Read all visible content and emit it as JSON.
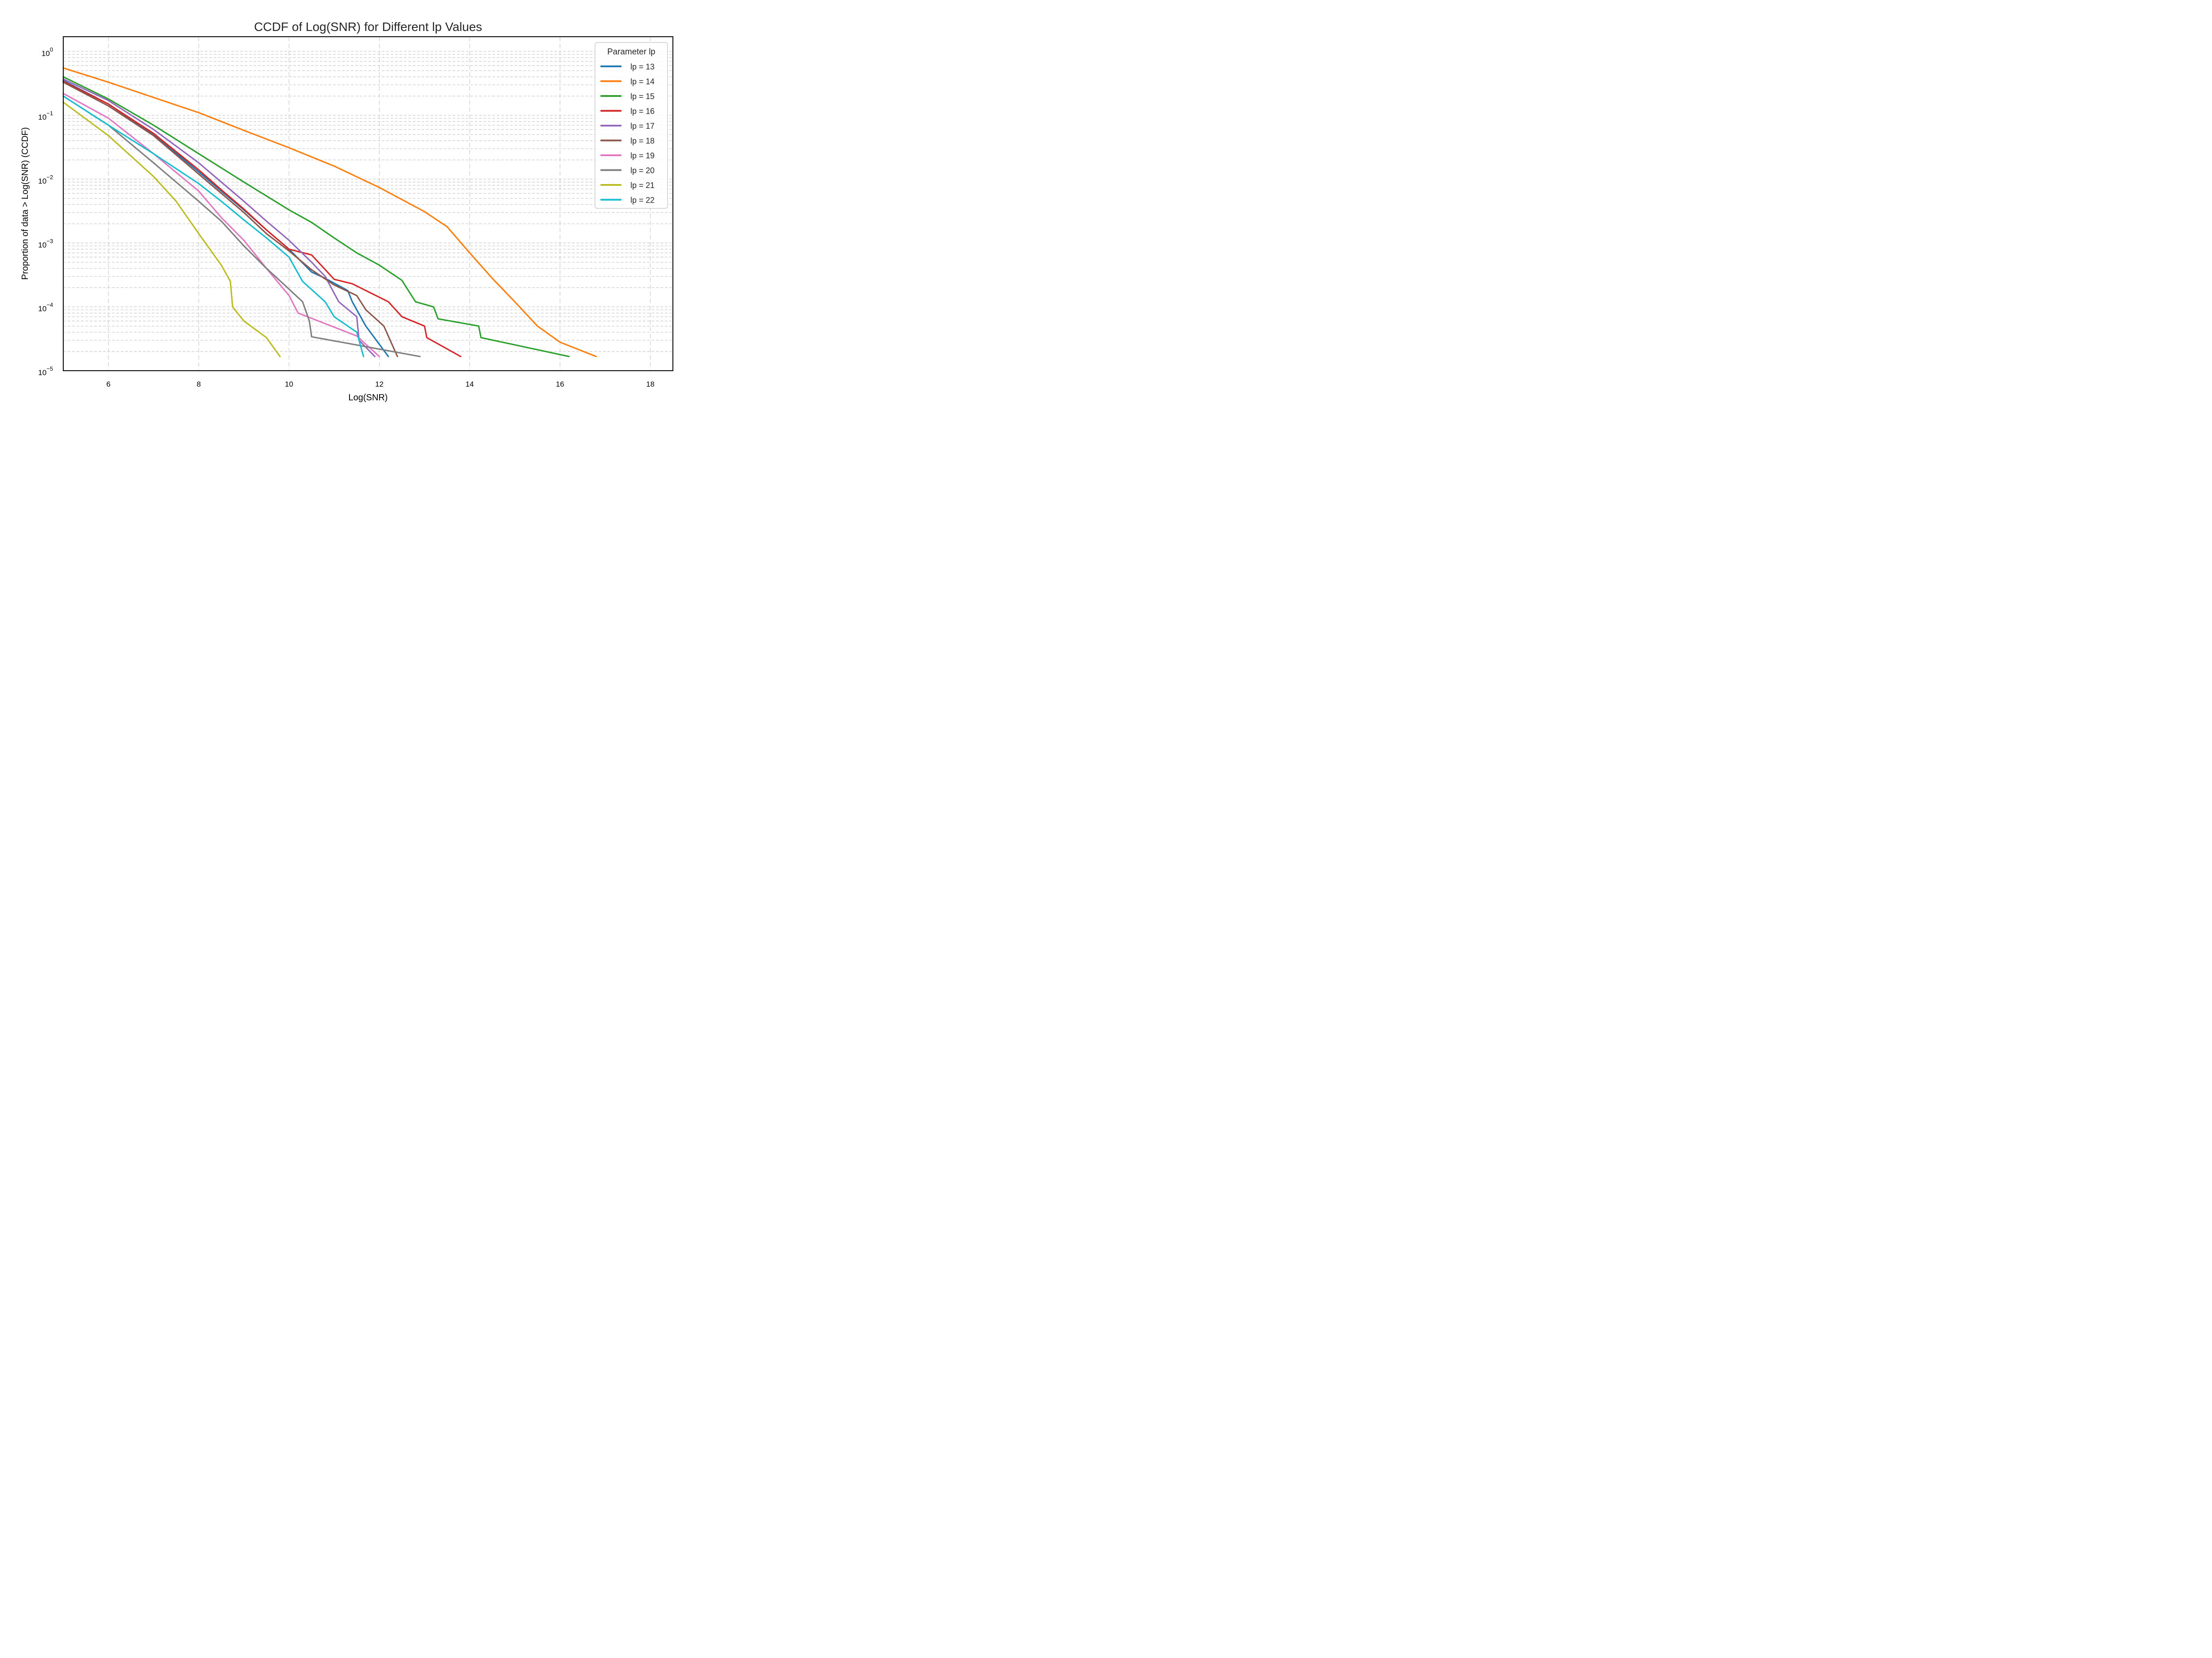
{
  "chart_data": {
    "type": "line",
    "title": "CCDF of Log(SNR) for Different lp Values",
    "xlabel": "Log(SNR)",
    "ylabel": "Proportion of data > Log(SNR) (CCDF)",
    "xlim": [
      5.0,
      18.5
    ],
    "ylim": [
      1e-05,
      1.7
    ],
    "yscale": "log",
    "grid": true,
    "xticks": [
      6,
      8,
      10,
      12,
      14,
      16,
      18
    ],
    "xtick_labels": [
      "6",
      "8",
      "10",
      "12",
      "14",
      "16",
      "18"
    ],
    "yticks": [
      1e-05,
      0.0001,
      0.001,
      0.01,
      0.1,
      1
    ],
    "ytick_labels": [
      {
        "base": "10",
        "exp": "−5"
      },
      {
        "base": "10",
        "exp": "−4"
      },
      {
        "base": "10",
        "exp": "−3"
      },
      {
        "base": "10",
        "exp": "−2"
      },
      {
        "base": "10",
        "exp": "−1"
      },
      {
        "base": "10",
        "exp": "0"
      }
    ],
    "legend": {
      "title": "Parameter lp",
      "position": "top-right"
    },
    "series": [
      {
        "name": "lp = 13",
        "color": "#1f77b4",
        "x": [
          5.0,
          6.0,
          7.0,
          8.0,
          8.5,
          9.0,
          9.5,
          10.0,
          10.5,
          10.8,
          11.3,
          11.4,
          11.7,
          12.2
        ],
        "y": [
          0.35,
          0.15,
          0.05,
          0.013,
          0.0065,
          0.0033,
          0.0016,
          0.0008,
          0.00035,
          0.00028,
          0.00018,
          0.00012,
          5e-05,
          1.67e-05
        ]
      },
      {
        "name": "lp = 14",
        "color": "#ff7f0e",
        "x": [
          5.0,
          6.0,
          7.0,
          8.0,
          9.0,
          10.0,
          11.0,
          12.0,
          13.0,
          13.5,
          14.0,
          14.5,
          15.0,
          15.5,
          16.0,
          16.8
        ],
        "y": [
          0.55,
          0.33,
          0.19,
          0.11,
          0.058,
          0.031,
          0.016,
          0.0074,
          0.0031,
          0.0018,
          0.0007,
          0.00028,
          0.00012,
          5e-05,
          2.8e-05,
          1.67e-05
        ]
      },
      {
        "name": "lp = 15",
        "color": "#2ca02c",
        "x": [
          5.0,
          6.0,
          7.0,
          8.0,
          9.0,
          10.0,
          10.5,
          11.0,
          11.5,
          12.0,
          12.5,
          12.8,
          13.2,
          13.3,
          14.2,
          14.25,
          16.2
        ],
        "y": [
          0.4,
          0.18,
          0.07,
          0.025,
          0.009,
          0.0033,
          0.0021,
          0.0012,
          0.0007,
          0.00045,
          0.00026,
          0.00012,
          0.0001,
          6.5e-05,
          5e-05,
          3.3e-05,
          1.67e-05
        ]
      },
      {
        "name": "lp = 16",
        "color": "#d62728",
        "x": [
          5.0,
          6.0,
          7.0,
          8.0,
          8.5,
          9.0,
          9.5,
          10.0,
          10.5,
          11.0,
          11.4,
          12.2,
          12.5,
          13.0,
          13.05,
          13.8
        ],
        "y": [
          0.34,
          0.15,
          0.052,
          0.014,
          0.0068,
          0.0034,
          0.0016,
          0.0008,
          0.00065,
          0.00027,
          0.00023,
          0.00012,
          7e-05,
          5e-05,
          3.3e-05,
          1.67e-05
        ]
      },
      {
        "name": "lp = 17",
        "color": "#9467bd",
        "x": [
          5.0,
          6.0,
          7.0,
          8.0,
          8.5,
          9.0,
          9.5,
          10.0,
          10.5,
          10.8,
          11.1,
          11.5,
          11.55,
          11.9
        ],
        "y": [
          0.37,
          0.17,
          0.06,
          0.018,
          0.009,
          0.0045,
          0.0022,
          0.0011,
          0.0005,
          0.0003,
          0.00012,
          7e-05,
          3e-05,
          1.67e-05
        ]
      },
      {
        "name": "lp = 18",
        "color": "#8c564b",
        "x": [
          5.0,
          6.0,
          7.0,
          8.0,
          8.5,
          9.0,
          9.5,
          10.0,
          10.5,
          11.0,
          11.5,
          11.7,
          12.1,
          12.4
        ],
        "y": [
          0.33,
          0.14,
          0.048,
          0.012,
          0.006,
          0.003,
          0.0014,
          0.00075,
          0.00038,
          0.00022,
          0.00015,
          9e-05,
          5e-05,
          1.67e-05
        ]
      },
      {
        "name": "lp = 19",
        "color": "#e377c2",
        "x": [
          5.0,
          6.0,
          7.0,
          8.0,
          8.5,
          9.0,
          9.5,
          10.0,
          10.2,
          11.5,
          12.0
        ],
        "y": [
          0.22,
          0.09,
          0.025,
          0.0065,
          0.0025,
          0.0011,
          0.0004,
          0.00015,
          8e-05,
          3.5e-05,
          1.67e-05
        ]
      },
      {
        "name": "lp = 20",
        "color": "#7f7f7f",
        "x": [
          5.0,
          6.0,
          7.0,
          8.0,
          8.5,
          9.0,
          9.5,
          9.9,
          10.3,
          10.45,
          10.5,
          12.9
        ],
        "y": [
          0.2,
          0.07,
          0.018,
          0.0045,
          0.0022,
          0.0009,
          0.0004,
          0.00022,
          0.00012,
          6e-05,
          3.4e-05,
          1.67e-05
        ]
      },
      {
        "name": "lp = 21",
        "color": "#bcbd22",
        "x": [
          5.0,
          6.0,
          7.0,
          7.5,
          8.0,
          8.5,
          8.7,
          8.75,
          9.0,
          9.5,
          9.8
        ],
        "y": [
          0.16,
          0.048,
          0.011,
          0.0045,
          0.0014,
          0.00045,
          0.00025,
          0.0001,
          6e-05,
          3.3e-05,
          1.67e-05
        ]
      },
      {
        "name": "lp = 22",
        "color": "#17becf",
        "x": [
          5.0,
          6.0,
          7.0,
          8.0,
          8.5,
          9.0,
          9.5,
          10.0,
          10.3,
          10.8,
          11.0,
          11.5,
          11.65
        ],
        "y": [
          0.2,
          0.07,
          0.025,
          0.0085,
          0.0045,
          0.0023,
          0.0012,
          0.0006,
          0.00025,
          0.00012,
          7e-05,
          4e-05,
          1.67e-05
        ]
      }
    ]
  }
}
